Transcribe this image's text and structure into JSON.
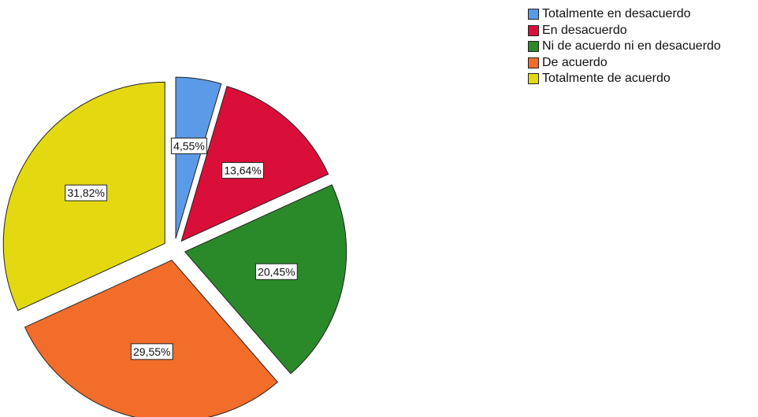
{
  "chart_data": {
    "type": "pie",
    "title": "",
    "legend_position": "top-right",
    "exploded": true,
    "start_angle_deg": 0,
    "direction": "clockwise",
    "slices": [
      {
        "label": "Totalmente en desacuerdo",
        "value": 4.55,
        "display": "4,55%",
        "color": "#5b9ae6"
      },
      {
        "label": "En desacuerdo",
        "value": 13.64,
        "display": "13,64%",
        "color": "#d90f3a"
      },
      {
        "label": "Ni de acuerdo ni en desacuerdo",
        "value": 20.45,
        "display": "20,45%",
        "color": "#2a8a2a"
      },
      {
        "label": "De acuerdo",
        "value": 29.55,
        "display": "29,55%",
        "color": "#f26d2a"
      },
      {
        "label": "Totalmente de acuerdo",
        "value": 31.82,
        "display": "31,82%",
        "color": "#e4d911"
      }
    ]
  }
}
